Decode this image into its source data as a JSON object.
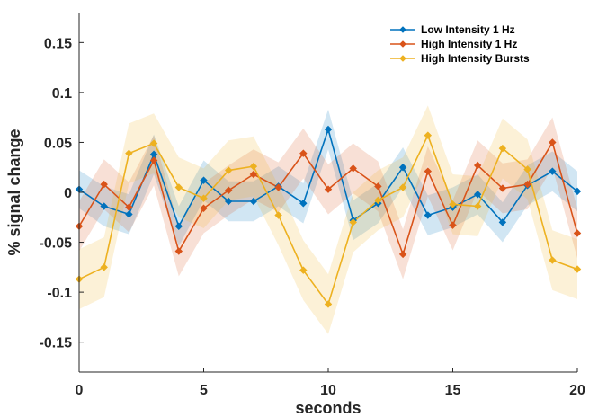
{
  "chart_data": {
    "type": "line",
    "title": "",
    "xlabel": "seconds",
    "ylabel": "% signal change",
    "xlim": [
      0,
      20
    ],
    "ylim": [
      -0.18,
      0.18
    ],
    "xticks": [
      0,
      5,
      10,
      15,
      20
    ],
    "xtick_labels": [
      "0",
      "5",
      "10",
      "15",
      "20"
    ],
    "yticks": [
      -0.15,
      -0.1,
      -0.05,
      0,
      0.05,
      0.1,
      0.15
    ],
    "ytick_labels": [
      "-0.15",
      "-0.1",
      "-0.05",
      "0",
      "0.05",
      "0.1",
      "0.15"
    ],
    "grid": false,
    "legend_position": "top-right",
    "x": [
      0,
      1,
      2,
      3,
      4,
      5,
      6,
      7,
      8,
      9,
      10,
      11,
      12,
      13,
      14,
      15,
      16,
      17,
      18,
      19,
      20
    ],
    "series": [
      {
        "name": "Low Intensity 1 Hz",
        "color": "#0072BD",
        "values": [
          0.003,
          -0.014,
          -0.022,
          0.038,
          -0.034,
          0.012,
          -0.009,
          -0.009,
          0.006,
          -0.011,
          0.063,
          -0.028,
          -0.011,
          0.025,
          -0.023,
          -0.015,
          -0.002,
          -0.03,
          0.007,
          0.021,
          0.001
        ],
        "upper": [
          0.022,
          0.006,
          -0.002,
          0.058,
          -0.014,
          0.032,
          0.011,
          0.011,
          0.026,
          0.009,
          0.083,
          -0.008,
          0.009,
          0.045,
          -0.003,
          0.005,
          0.018,
          -0.01,
          0.027,
          0.041,
          0.021
        ],
        "lower": [
          -0.016,
          -0.034,
          -0.042,
          0.018,
          -0.054,
          -0.008,
          -0.029,
          -0.029,
          -0.014,
          -0.031,
          0.043,
          -0.048,
          -0.031,
          0.005,
          -0.043,
          -0.035,
          -0.022,
          -0.05,
          -0.013,
          0.001,
          -0.019
        ]
      },
      {
        "name": "High Intensity 1 Hz",
        "color": "#D95319",
        "values": [
          -0.034,
          0.008,
          -0.015,
          0.032,
          -0.059,
          -0.016,
          0.002,
          0.018,
          0.005,
          0.039,
          0.003,
          0.024,
          0.006,
          -0.062,
          0.021,
          -0.033,
          0.027,
          0.004,
          0.008,
          0.05,
          -0.041
        ],
        "upper": [
          -0.009,
          0.033,
          0.01,
          0.057,
          -0.034,
          0.009,
          0.027,
          0.043,
          0.03,
          0.064,
          0.028,
          0.049,
          0.031,
          -0.037,
          0.046,
          -0.008,
          0.052,
          0.029,
          0.033,
          0.075,
          -0.016
        ],
        "lower": [
          -0.059,
          -0.017,
          -0.04,
          0.007,
          -0.084,
          -0.041,
          -0.023,
          -0.007,
          -0.02,
          0.014,
          -0.022,
          -0.001,
          -0.019,
          -0.087,
          -0.004,
          -0.058,
          0.002,
          -0.021,
          -0.017,
          0.025,
          -0.066
        ]
      },
      {
        "name": "High Intensity Bursts",
        "color": "#EDB120",
        "values": [
          -0.087,
          -0.075,
          0.039,
          0.049,
          0.005,
          -0.006,
          0.022,
          0.026,
          -0.023,
          -0.078,
          -0.112,
          -0.03,
          -0.008,
          0.005,
          0.057,
          -0.012,
          -0.014,
          0.044,
          0.023,
          -0.068,
          -0.077
        ],
        "upper": [
          -0.057,
          -0.045,
          0.069,
          0.079,
          0.035,
          0.024,
          0.052,
          0.056,
          0.007,
          -0.048,
          -0.082,
          0.0,
          0.022,
          0.035,
          0.087,
          0.018,
          0.016,
          0.074,
          0.053,
          -0.038,
          -0.047
        ],
        "lower": [
          -0.117,
          -0.105,
          0.009,
          0.019,
          -0.025,
          -0.036,
          -0.008,
          -0.004,
          -0.053,
          -0.108,
          -0.142,
          -0.06,
          -0.038,
          -0.025,
          0.027,
          -0.042,
          -0.044,
          0.014,
          -0.007,
          -0.098,
          -0.107
        ]
      }
    ]
  }
}
